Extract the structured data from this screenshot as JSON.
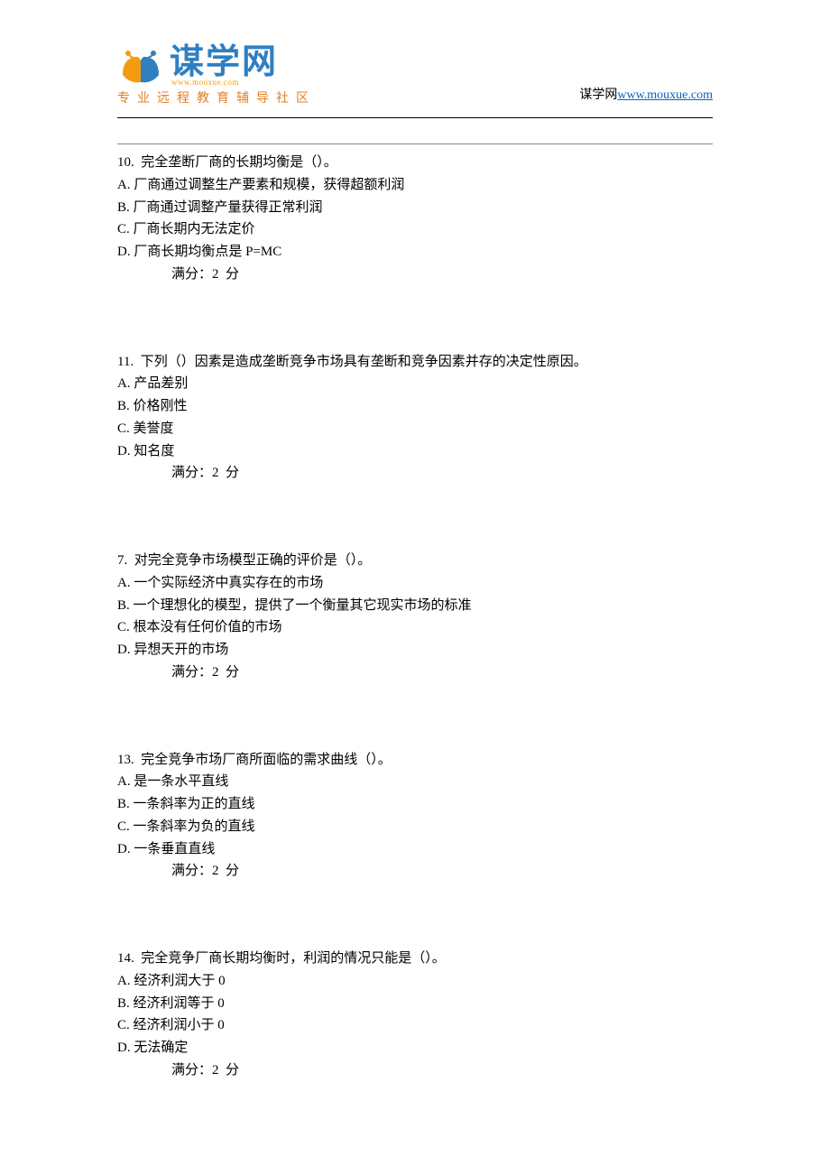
{
  "header": {
    "logo_text": "谋学网",
    "logo_url_small": "www.mouxue.com",
    "logo_subtitle": "专业远程教育辅导社区",
    "site_name": "谋学网",
    "site_link_text": "www.mouxue.com",
    "site_link_href": "http://www.mouxue.com"
  },
  "colors": {
    "logo_blue": "#2f7fc1",
    "logo_orange": "#e67e22",
    "link_blue": "#0563c1",
    "text_black": "#000000"
  },
  "questions": [
    {
      "number": "10.",
      "stem": "完全垄断厂商的长期均衡是（）。",
      "options": [
        {
          "letter": "A.",
          "text": "厂商通过调整生产要素和规模，获得超额利润"
        },
        {
          "letter": "B.",
          "text": "厂商通过调整产量获得正常利润"
        },
        {
          "letter": "C.",
          "text": "厂商长期内无法定价"
        },
        {
          "letter": "D.",
          "text": "厂商长期均衡点是 P=MC"
        }
      ],
      "score_label": "满分：2  分"
    },
    {
      "number": "11.",
      "stem": "下列（）因素是造成垄断竞争市场具有垄断和竞争因素并存的决定性原因。",
      "options": [
        {
          "letter": "A.",
          "text": "产品差别"
        },
        {
          "letter": "B.",
          "text": "价格刚性"
        },
        {
          "letter": "C.",
          "text": "美誉度"
        },
        {
          "letter": "D.",
          "text": "知名度"
        }
      ],
      "score_label": "满分：2  分"
    },
    {
      "number": "7.",
      "stem": "对完全竞争市场模型正确的评价是（）。",
      "options": [
        {
          "letter": "A.",
          "text": "一个实际经济中真实存在的市场"
        },
        {
          "letter": "B.",
          "text": "一个理想化的模型，提供了一个衡量其它现实市场的标准"
        },
        {
          "letter": "C.",
          "text": "根本没有任何价值的市场"
        },
        {
          "letter": "D.",
          "text": "异想天开的市场"
        }
      ],
      "score_label": "满分：2  分"
    },
    {
      "number": "13.",
      "stem": "完全竞争市场厂商所面临的需求曲线（）。",
      "options": [
        {
          "letter": "A.",
          "text": "是一条水平直线"
        },
        {
          "letter": "B.",
          "text": "一条斜率为正的直线"
        },
        {
          "letter": "C.",
          "text": "一条斜率为负的直线"
        },
        {
          "letter": "D.",
          "text": "一条垂直直线"
        }
      ],
      "score_label": "满分：2  分"
    },
    {
      "number": "14.",
      "stem": "完全竞争厂商长期均衡时，利润的情况只能是（）。",
      "options": [
        {
          "letter": "A.",
          "text": "经济利润大于 0"
        },
        {
          "letter": "B.",
          "text": "经济利润等于 0"
        },
        {
          "letter": "C.",
          "text": "经济利润小于 0"
        },
        {
          "letter": "D.",
          "text": "无法确定"
        }
      ],
      "score_label": "满分：2  分"
    }
  ]
}
